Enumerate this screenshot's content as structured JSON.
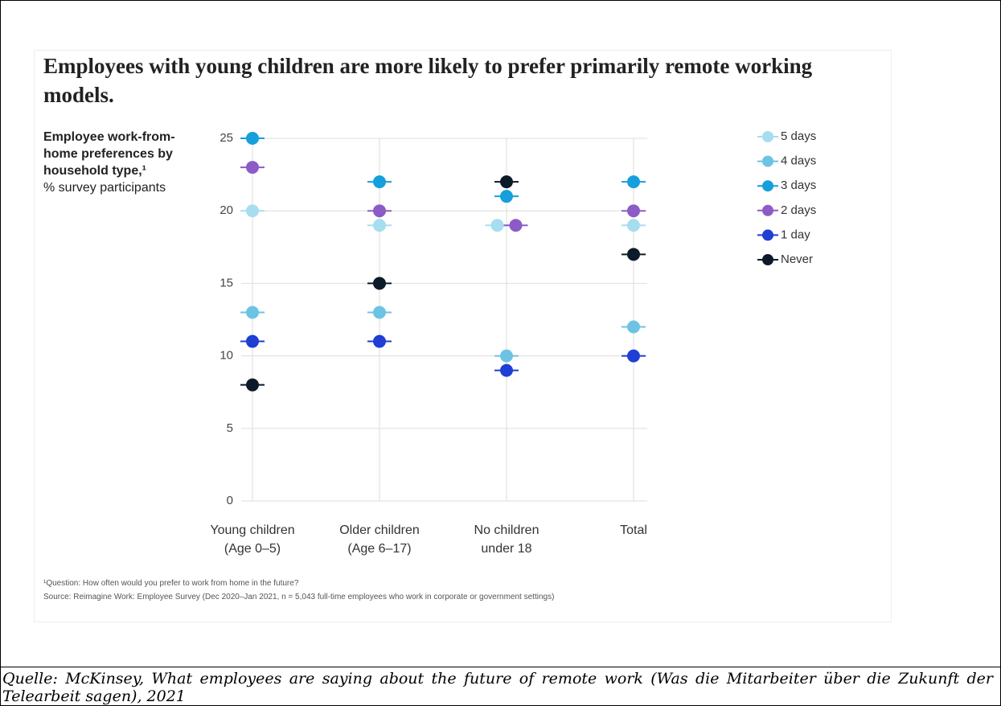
{
  "chart_data": {
    "type": "dot",
    "title": "Employees with young children are more likely to prefer primarily remote working models.",
    "y_axis_title": "Employee work-from-home preferences by household type,¹",
    "y_axis_subtitle": "% survey participants",
    "categories": [
      [
        "Young children",
        "(Age 0–5)"
      ],
      [
        "Older children",
        "(Age 6–17)"
      ],
      [
        "No children",
        "under 18"
      ],
      [
        "Total"
      ]
    ],
    "series": [
      {
        "name": "5 days",
        "color": "#a6def0",
        "values": [
          20,
          19,
          19,
          19
        ]
      },
      {
        "name": "4 days",
        "color": "#6cc3e4",
        "values": [
          13,
          13,
          10,
          12
        ]
      },
      {
        "name": "3 days",
        "color": "#159fdc",
        "values": [
          25,
          22,
          21,
          22
        ]
      },
      {
        "name": "2 days",
        "color": "#8c5bc6",
        "values": [
          23,
          20,
          19,
          20
        ]
      },
      {
        "name": "1 day",
        "color": "#1e3ed4",
        "values": [
          11,
          11,
          9,
          10
        ]
      },
      {
        "name": "Never",
        "color": "#0d1a29",
        "values": [
          8,
          15,
          22,
          17
        ]
      }
    ],
    "ylim": [
      0,
      25
    ],
    "yticks": [
      0,
      5,
      10,
      15,
      20,
      25
    ],
    "grid": true,
    "legend": "right",
    "footnotes": [
      "¹Question: How often would you prefer to work from home in the future?",
      "Source: Reimagine Work: Employee Survey (Dec 2020–Jan 2021, n = 5,043 full-time employees who work in corporate or government settings)"
    ]
  },
  "caption": "Quelle: McKinsey, What employees are saying about the future of remote work (Was die Mitarbeiter über die Zukunft der Telearbeit sagen), 2021"
}
